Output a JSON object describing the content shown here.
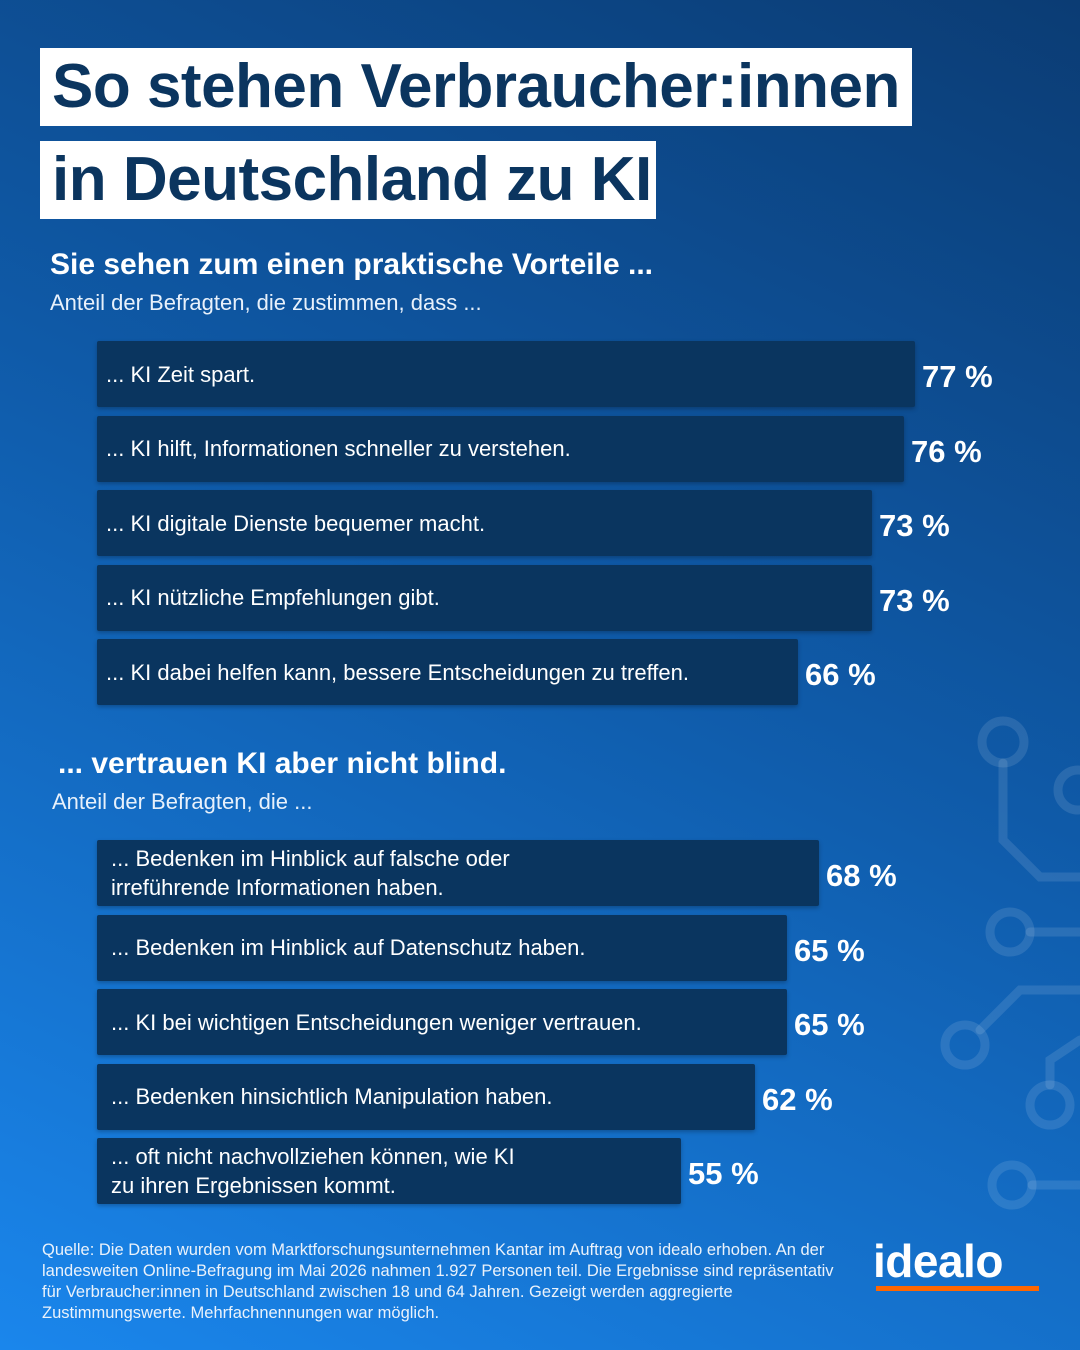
{
  "title": {
    "line1": "So stehen Verbraucher:innen",
    "line2": "in Deutschland zu KI"
  },
  "colors": {
    "background_top": "#0b3c74",
    "background_bottom": "#1a86ec",
    "bar": "#0a355f",
    "title_text": "#0b355f",
    "logo_accent": "#ff6600"
  },
  "chart_data": [
    {
      "type": "bar",
      "orientation": "horizontal",
      "title": "Sie sehen zum einen praktische Vorteile ...",
      "subtitle": "Anteil der Befragten, die zustimmen, dass ...",
      "unit": "%",
      "xlim": [
        0,
        100
      ],
      "grid": false,
      "categories": [
        "... KI Zeit spart.",
        "... KI hilft, Informationen schneller zu verstehen.",
        "... KI digitale Dienste bequemer macht.",
        "... KI nützliche Empfehlungen gibt.",
        "... KI dabei helfen kann, bessere Entscheidungen zu treffen."
      ],
      "values": [
        77,
        76,
        73,
        73,
        66
      ],
      "value_labels": [
        "77 %",
        "76 %",
        "73 %",
        "73 %",
        "66 %"
      ]
    },
    {
      "type": "bar",
      "orientation": "horizontal",
      "title": "... vertrauen KI aber nicht blind.",
      "subtitle": "Anteil der Befragten, die ...",
      "unit": "%",
      "xlim": [
        0,
        100
      ],
      "grid": false,
      "categories": [
        "... Bedenken im Hinblick auf falsche oder\n    irreführende Informationen haben.",
        "... Bedenken im Hinblick auf Datenschutz haben.",
        "... KI bei wichtigen Entscheidungen weniger vertrauen.",
        "... Bedenken hinsichtlich Manipulation haben.",
        "... oft nicht nachvollziehen können, wie KI\n    zu ihren Ergebnissen kommt."
      ],
      "values": [
        68,
        65,
        65,
        62,
        55
      ],
      "value_labels": [
        "68 %",
        "65 %",
        "65 %",
        "62 %",
        "55 %"
      ]
    }
  ],
  "footer": {
    "source_note": "Quelle: Die Daten wurden vom Marktforschungsunternehmen Kantar im Auftrag von idealo erhoben. An der landesweiten Online-Befragung im Mai 2026 nahmen 1.927  Personen teil. Die Ergebnisse sind repräsentativ für Verbraucher:innen in Deutschland zwischen 18 und 64 Jahren. Gezeigt werden aggregierte Zustimmungswerte. Mehrfachnennungen war möglich.",
    "logo_text": "idealo"
  }
}
